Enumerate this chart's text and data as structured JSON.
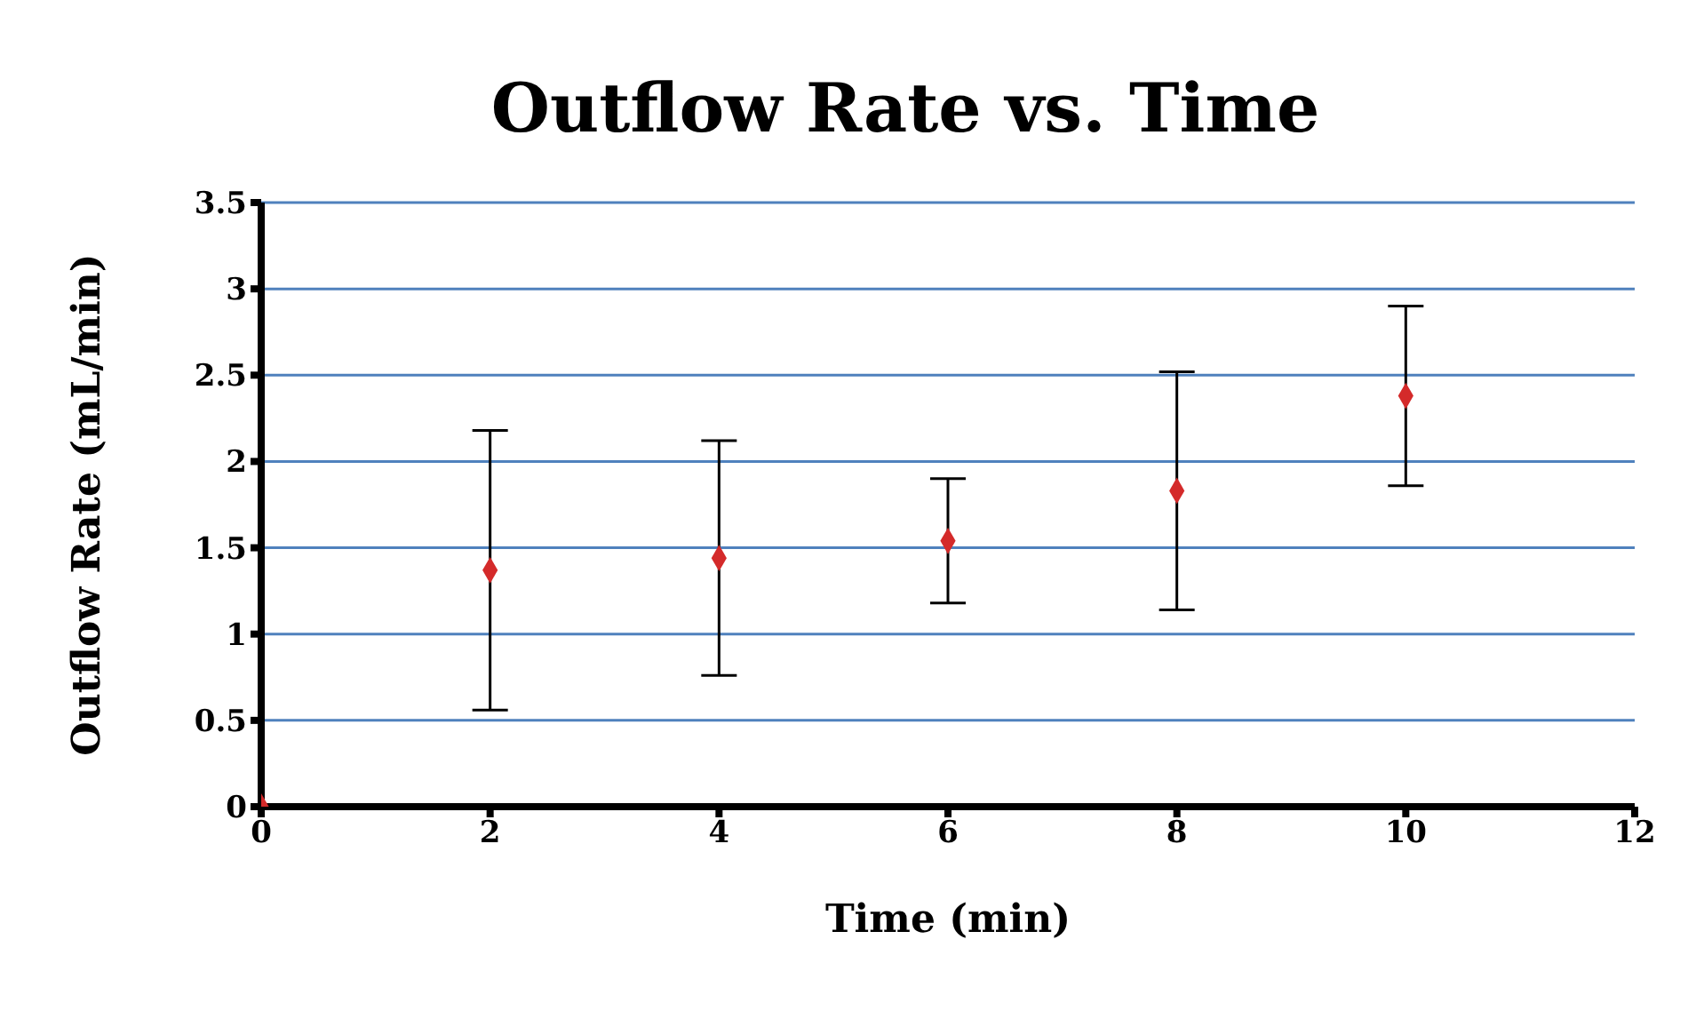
{
  "chart_data": {
    "type": "scatter",
    "title": "Outflow Rate vs. Time",
    "xlabel": "Time (min)",
    "ylabel": "Outflow  Rate (mL/min)",
    "x": [
      0,
      2,
      4,
      6,
      8,
      10
    ],
    "values": [
      0,
      1.37,
      1.44,
      1.54,
      1.83,
      2.38
    ],
    "errors": [
      null,
      0.81,
      0.68,
      0.36,
      0.69,
      0.52
    ],
    "color": "#d42a2a",
    "marker": "diamond",
    "grid": "y",
    "xlim": [
      0,
      12
    ],
    "xticks": [
      0,
      2,
      4,
      6,
      8,
      10,
      12
    ],
    "ylim": [
      0,
      3.5
    ],
    "yticks": [
      0,
      0.5,
      1,
      1.5,
      2,
      2.5,
      3,
      3.5
    ]
  }
}
